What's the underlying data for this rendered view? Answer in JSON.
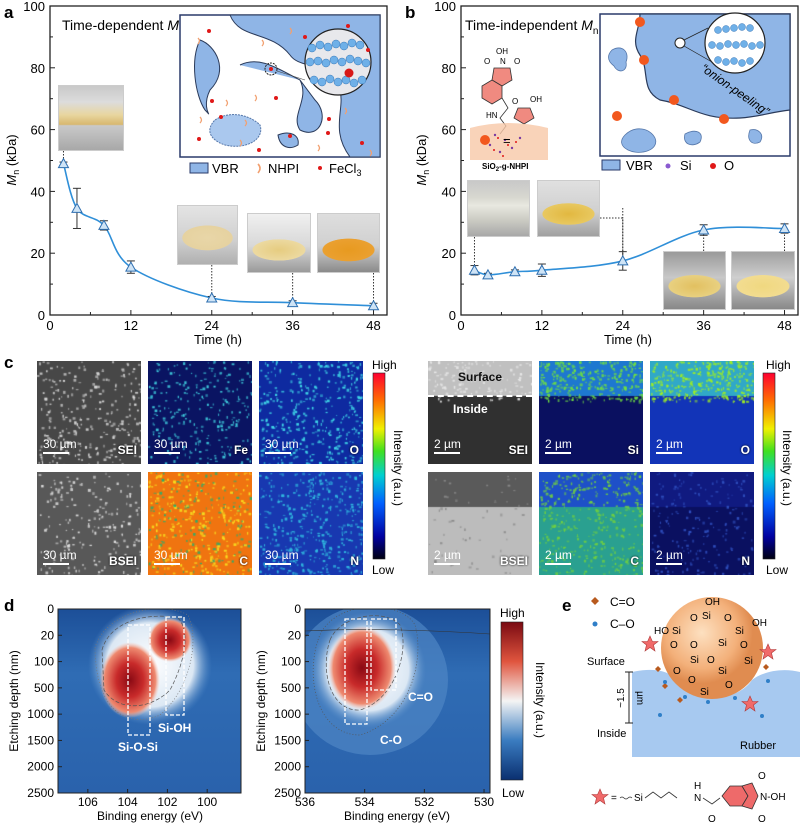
{
  "panel_labels": {
    "a": "a",
    "b": "b",
    "c": "c",
    "d": "d",
    "e": "e"
  },
  "chart_data": [
    {
      "type": "line",
      "panel": "a",
      "title": {
        "text": "Time-dependent ",
        "symbol": "M",
        "subscript": "n"
      },
      "xlabel": "Time (h)",
      "ylabel": {
        "symbol": "M",
        "subscript": "n",
        "unit": " (kDa)"
      },
      "xlim": [
        0,
        50
      ],
      "ylim": [
        0,
        100
      ],
      "xticks": [
        0,
        12,
        24,
        36,
        48
      ],
      "yticks": [
        0,
        20,
        40,
        60,
        80,
        100
      ],
      "markers": "open-triangle",
      "color": "#2f8fd8",
      "x": [
        2,
        4,
        8,
        12,
        24,
        36,
        48
      ],
      "y": [
        49,
        34.5,
        29,
        15.5,
        5.5,
        4,
        3
      ],
      "error": [
        0.5,
        6.5,
        1.5,
        2,
        0.5,
        0.6,
        0.8
      ],
      "photo_times": [
        2,
        24,
        36,
        48
      ],
      "inset": {
        "legend": [
          {
            "label": "VBR"
          },
          {
            "label": "NHPI"
          },
          {
            "label": "FeCl",
            "subscript": "3"
          }
        ]
      }
    },
    {
      "type": "line",
      "panel": "b",
      "title": {
        "text": "Time-independent ",
        "symbol": "M",
        "subscript": "n"
      },
      "xlabel": "Time (h)",
      "ylabel": {
        "symbol": "M",
        "subscript": "n",
        "unit": " (kDa)"
      },
      "xlim": [
        0,
        50
      ],
      "ylim": [
        0,
        100
      ],
      "xticks": [
        0,
        12,
        24,
        36,
        48
      ],
      "yticks": [
        0,
        20,
        40,
        60,
        80,
        100
      ],
      "markers": "open-triangle",
      "color": "#2f8fd8",
      "x": [
        2,
        4,
        8,
        12,
        24,
        36,
        48
      ],
      "y": [
        14.5,
        13,
        14,
        14.5,
        17.5,
        27.5,
        28
      ],
      "error": [
        1.5,
        0.5,
        0.6,
        2,
        3,
        1.7,
        1.5
      ],
      "photo_times": [
        2,
        24,
        36,
        48
      ],
      "inset": {
        "annotation": "“onion-peeling”",
        "legend": [
          {
            "label": "VBR"
          },
          {
            "label": "Si"
          },
          {
            "label": "O"
          }
        ],
        "equals": "=",
        "particle_label": {
          "a": "SiO",
          "sub": "2",
          "b": "-g-NHPI"
        },
        "structure_atoms": [
          "OH",
          "N",
          "O",
          "O",
          "HN",
          "O",
          "OH",
          "O"
        ]
      }
    },
    {
      "type": "heatmap",
      "panel": "d",
      "xlabel": "Binding energy (eV)",
      "ylabel": "Etching depth (nm)",
      "xlim": [
        107.5,
        98.3
      ],
      "xticks": [
        106,
        104,
        102,
        100
      ],
      "yticks": [
        0,
        20,
        100,
        500,
        1000,
        1500,
        2000,
        2500
      ],
      "annotations": [
        "Si-O-Si",
        "Si-OH"
      ],
      "colormap": [
        "#0d3a80",
        "#3a7cc0",
        "#f4f4f4",
        "#e0553e",
        "#8a0a14"
      ]
    },
    {
      "type": "heatmap",
      "panel": "d",
      "xlabel": "Binding energy (eV)",
      "ylabel": "Etching depth (nm)",
      "xlim": [
        536,
        529.8
      ],
      "xticks": [
        536,
        534,
        532,
        530
      ],
      "yticks": [
        0,
        20,
        100,
        500,
        1000,
        1500,
        2000,
        2500
      ],
      "annotations": [
        "C=O",
        "C-O"
      ],
      "colormap": [
        "#0d3a80",
        "#3a7cc0",
        "#f4f4f4",
        "#e0553e",
        "#8a0a14"
      ],
      "colorbar": {
        "high": "High",
        "low": "Low",
        "label": "Intensity (a.u.)"
      }
    }
  ],
  "panel_c": {
    "left": {
      "scale_bar": "30 µm",
      "tiles": [
        "SEI",
        "Fe",
        "O",
        "BSEI",
        "C",
        "N"
      ],
      "colorbar": {
        "high": "High",
        "low": "Low",
        "label": "Intensity (a.u.)"
      }
    },
    "right": {
      "scale_bar": "2 µm",
      "surface": "Surface",
      "inside": "Inside",
      "tiles": [
        "SEI",
        "Si",
        "O",
        "BSEI",
        "C",
        "N"
      ],
      "colorbar": {
        "high": "High",
        "low": "Low",
        "label": "Intensity (a.u.)"
      }
    }
  },
  "panel_e": {
    "legend": [
      {
        "label": "C=O",
        "color": "#b85a1e"
      },
      {
        "label": "C–O",
        "color": "#2f7fc8"
      }
    ],
    "surface": "Surface",
    "inside": "Inside",
    "depth": "~1.5",
    "depth_unit": "µm",
    "rubber": "Rubber",
    "silica_atoms": [
      "OH",
      "O",
      "Si",
      "O",
      "OH",
      "HO",
      "Si",
      "O",
      "Si",
      "O",
      "O",
      "Si",
      "Si",
      "O",
      "Si",
      "O",
      "Si",
      "O",
      "O",
      "Si"
    ],
    "formula": {
      "equals": "=",
      "si": "Si",
      "h": "H",
      "n": "N",
      "o1": "O",
      "o2": "O",
      "o3": "O",
      "noh": "N-OH"
    }
  }
}
